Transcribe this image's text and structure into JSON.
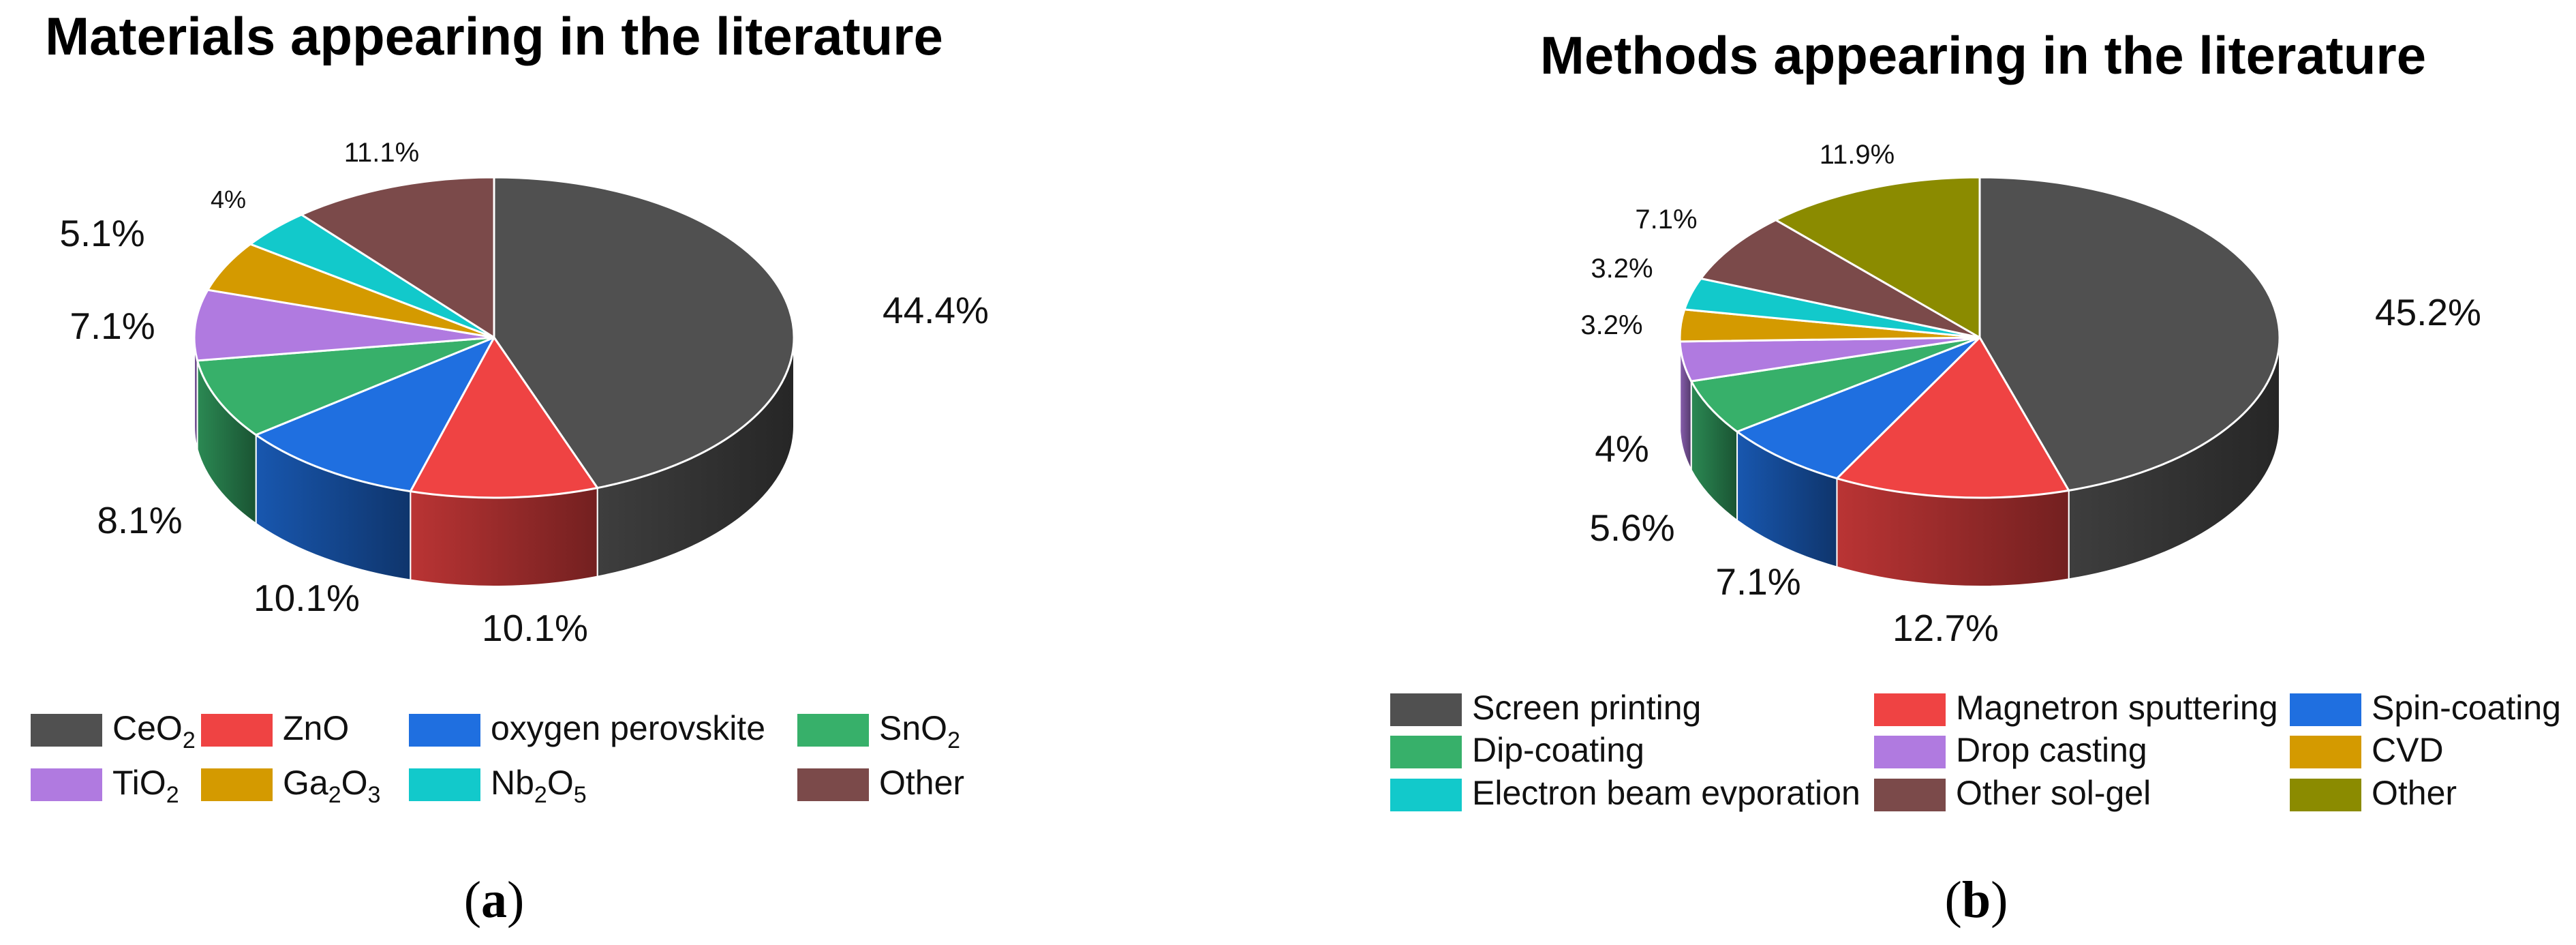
{
  "chart_data": [
    {
      "type": "pie",
      "title": "Materials appearing in the literature",
      "caption": {
        "open": "(",
        "letter": "a",
        "close": ")"
      },
      "slices": [
        {
          "label": "CeO",
          "sub": "2",
          "suffix": "",
          "value": 44.4,
          "text": "44.4%",
          "color": "#505050"
        },
        {
          "label": "ZnO",
          "sub": "",
          "suffix": "",
          "value": 10.1,
          "text": "10.1%",
          "color": "#ef4343"
        },
        {
          "label": "oxygen perovskite",
          "sub": "",
          "suffix": "",
          "value": 10.1,
          "text": "10.1%",
          "color": "#1f6fe0"
        },
        {
          "label": "SnO",
          "sub": "2",
          "suffix": "",
          "value": 8.1,
          "text": "8.1%",
          "color": "#37b06a"
        },
        {
          "label": "TiO",
          "sub": "2",
          "suffix": "",
          "value": 7.1,
          "text": "7.1%",
          "color": "#b07ae0"
        },
        {
          "label": "Ga",
          "sub": "2",
          "suffix": "O",
          "sub2": "3",
          "value": 5.1,
          "text": "5.1%",
          "color": "#d49a00"
        },
        {
          "label": "Nb",
          "sub": "2",
          "suffix": "O",
          "sub2": "5",
          "value": 4,
          "text": "4%",
          "color": "#12c9cb"
        },
        {
          "label": "Other",
          "sub": "",
          "suffix": "",
          "value": 11.1,
          "text": "11.1%",
          "color": "#7b4a4a"
        }
      ]
    },
    {
      "type": "pie",
      "title": "Methods appearing in the literature",
      "caption": {
        "open": "(",
        "letter": "b",
        "close": ")"
      },
      "slices": [
        {
          "label": "Screen printing",
          "value": 45.2,
          "text": "45.2%",
          "color": "#505050"
        },
        {
          "label": "Magnetron sputtering",
          "value": 12.7,
          "text": "12.7%",
          "color": "#ef4343"
        },
        {
          "label": "Spin-coating",
          "value": 7.1,
          "text": "7.1%",
          "color": "#1f6fe0"
        },
        {
          "label": "Dip-coating",
          "value": 5.6,
          "text": "5.6%",
          "color": "#37b06a"
        },
        {
          "label": "Drop casting",
          "value": 4,
          "text": "4%",
          "color": "#b07ae0"
        },
        {
          "label": "CVD",
          "value": 3.2,
          "text": "3.2%",
          "color": "#d49a00"
        },
        {
          "label": "Electron beam evporation",
          "value": 3.2,
          "text": "3.2%",
          "color": "#12c9cb"
        },
        {
          "label": "Other sol-gel",
          "value": 7.1,
          "text": "7.1%",
          "color": "#7b4a4a"
        },
        {
          "label": "Other",
          "value": 11.9,
          "text": "11.9%",
          "color": "#8b8b00"
        }
      ]
    }
  ]
}
